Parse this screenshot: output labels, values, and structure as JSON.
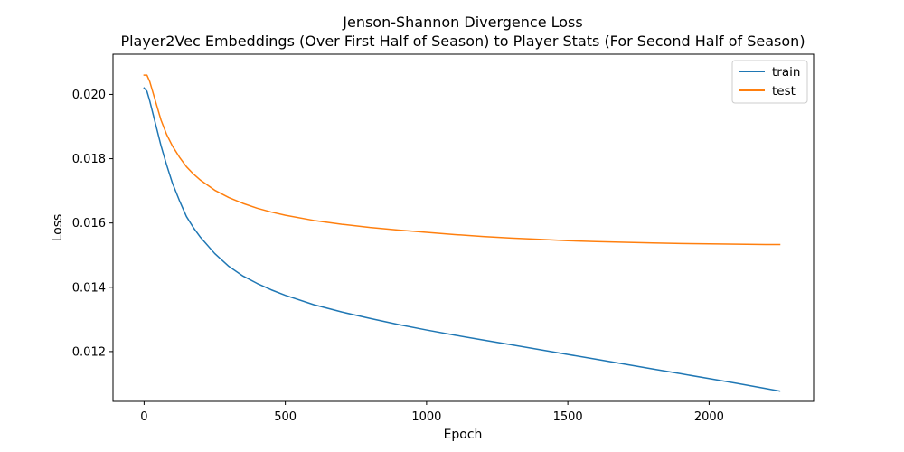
{
  "chart_data": {
    "type": "line",
    "title": "Jenson-Shannon Divergence Loss",
    "subtitle": "Player2Vec Embeddings (Over First Half of Season) to Player Stats (For Second Half of Season)",
    "xlabel": "Epoch",
    "ylabel": "Loss",
    "xlim": [
      -110,
      2370
    ],
    "ylim": [
      0.01045,
      0.02125
    ],
    "xticks": [
      0,
      500,
      1000,
      1500,
      2000
    ],
    "xtick_labels": [
      "0",
      "500",
      "1000",
      "1500",
      "2000"
    ],
    "yticks": [
      0.012,
      0.014,
      0.016,
      0.018,
      0.02
    ],
    "ytick_labels": [
      "0.012",
      "0.014",
      "0.016",
      "0.018",
      "0.020"
    ],
    "grid": false,
    "legend_position": "top-right",
    "series": [
      {
        "name": "train",
        "color": "#1f77b4",
        "x": [
          0,
          10,
          20,
          40,
          60,
          80,
          100,
          125,
          150,
          175,
          200,
          250,
          300,
          350,
          400,
          450,
          500,
          600,
          700,
          800,
          900,
          1000,
          1100,
          1200,
          1300,
          1400,
          1500,
          1600,
          1700,
          1800,
          1900,
          2000,
          2100,
          2200,
          2250
        ],
        "y": [
          0.0202,
          0.0201,
          0.0198,
          0.0191,
          0.0184,
          0.0178,
          0.01725,
          0.0167,
          0.0162,
          0.01585,
          0.01555,
          0.01505,
          0.01465,
          0.01435,
          0.01412,
          0.01392,
          0.01375,
          0.01346,
          0.01323,
          0.01303,
          0.01284,
          0.01267,
          0.01251,
          0.01236,
          0.01221,
          0.01206,
          0.01191,
          0.01176,
          0.01161,
          0.01146,
          0.01131,
          0.01116,
          0.01101,
          0.01085,
          0.01077
        ]
      },
      {
        "name": "test",
        "color": "#ff7f0e",
        "x": [
          0,
          10,
          20,
          40,
          60,
          80,
          100,
          125,
          150,
          175,
          200,
          250,
          300,
          350,
          400,
          450,
          500,
          600,
          700,
          800,
          900,
          1000,
          1100,
          1200,
          1300,
          1400,
          1500,
          1600,
          1700,
          1800,
          1900,
          2000,
          2100,
          2200,
          2250
        ],
        "y": [
          0.0206,
          0.0206,
          0.0204,
          0.0198,
          0.0192,
          0.01875,
          0.0184,
          0.01805,
          0.01775,
          0.01752,
          0.01733,
          0.01702,
          0.01679,
          0.01661,
          0.01646,
          0.01634,
          0.01624,
          0.01608,
          0.01596,
          0.01586,
          0.01578,
          0.01571,
          0.01564,
          0.01558,
          0.01553,
          0.01549,
          0.01545,
          0.01542,
          0.0154,
          0.01538,
          0.01536,
          0.01535,
          0.01534,
          0.01533,
          0.01533
        ]
      }
    ]
  }
}
